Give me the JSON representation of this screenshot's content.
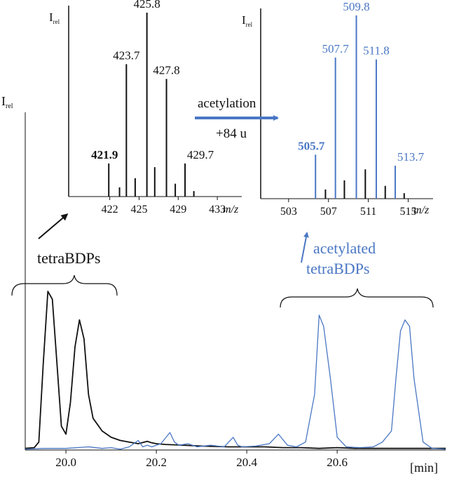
{
  "colors": {
    "black": "#111111",
    "blue": "#4a77c4"
  },
  "chart_data": [
    {
      "type": "line",
      "id": "chromatogram",
      "ylabel_main": "I",
      "ylabel_sub": "rel",
      "x_unit": "[min]",
      "xlim": [
        19.91,
        20.84
      ],
      "ylim": [
        0,
        1.0
      ],
      "x_ticks": [
        "20.0",
        "20.2",
        "20.4",
        "20.6"
      ],
      "x_tick_values": [
        20.0,
        20.2,
        20.4,
        20.6
      ],
      "series": [
        {
          "color": "#111111",
          "x": [
            19.91,
            19.93,
            19.94,
            19.95,
            19.96,
            19.97,
            19.98,
            19.99,
            20.0,
            20.01,
            20.02,
            20.03,
            20.04,
            20.05,
            20.06,
            20.08,
            20.1,
            20.12,
            20.14,
            20.16,
            20.18,
            20.19,
            20.2,
            20.22,
            20.26,
            20.3,
            20.36,
            20.4,
            20.44,
            20.48,
            20.52,
            20.56,
            20.6,
            20.64,
            20.68,
            20.72,
            20.76,
            20.8,
            20.84
          ],
          "y": [
            0.01,
            0.015,
            0.05,
            0.55,
            1.0,
            0.95,
            0.55,
            0.15,
            0.1,
            0.3,
            0.65,
            0.82,
            0.7,
            0.35,
            0.2,
            0.12,
            0.08,
            0.06,
            0.05,
            0.04,
            0.055,
            0.045,
            0.04,
            0.035,
            0.03,
            0.025,
            0.02,
            0.02,
            0.02,
            0.015,
            0.015,
            0.01,
            0.015,
            0.01,
            0.01,
            0.01,
            0.01,
            0.01,
            0.01
          ]
        },
        {
          "color": "#4a77c4",
          "x": [
            19.91,
            19.95,
            20.0,
            20.05,
            20.08,
            20.1,
            20.12,
            20.14,
            20.16,
            20.17,
            20.18,
            20.19,
            20.21,
            20.23,
            20.24,
            20.25,
            20.27,
            20.29,
            20.32,
            20.35,
            20.37,
            20.38,
            20.39,
            20.42,
            20.45,
            20.47,
            20.49,
            20.51,
            20.53,
            20.55,
            20.56,
            20.57,
            20.585,
            20.6,
            20.62,
            20.65,
            20.68,
            20.7,
            20.72,
            20.73,
            20.74,
            20.75,
            20.76,
            20.77,
            20.79,
            20.81,
            20.84
          ],
          "y": [
            0.005,
            0.01,
            0.01,
            0.02,
            0.01,
            0.015,
            0.005,
            0.02,
            0.06,
            0.02,
            0.03,
            0.02,
            0.04,
            0.11,
            0.05,
            0.03,
            0.04,
            0.02,
            0.03,
            0.02,
            0.08,
            0.03,
            0.02,
            0.025,
            0.04,
            0.1,
            0.03,
            0.02,
            0.05,
            0.35,
            0.85,
            0.78,
            0.45,
            0.08,
            0.02,
            0.015,
            0.02,
            0.05,
            0.12,
            0.45,
            0.75,
            0.82,
            0.78,
            0.45,
            0.05,
            0.01,
            0.005
          ]
        }
      ],
      "annotations": [
        {
          "text": "tetraBDPs",
          "color": "#111111"
        },
        {
          "text": "acetylated",
          "color": "#4a77c4"
        },
        {
          "text": "tetraBDPs",
          "color": "#4a77c4"
        }
      ]
    },
    {
      "type": "bar",
      "id": "ms-left",
      "ylabel_main": "I",
      "ylabel_sub": "rel",
      "x_unit": "m/z",
      "xlim": [
        417.8,
        435.5
      ],
      "ylim": [
        0,
        1.0
      ],
      "x_ticks": [
        "422",
        "425",
        "429",
        "433"
      ],
      "x_tick_values": [
        422,
        425,
        429,
        433
      ],
      "color": "#111111",
      "x": [
        421.9,
        423.0,
        423.7,
        424.6,
        425.8,
        426.6,
        427.8,
        428.7,
        429.7,
        430.6
      ],
      "values": [
        0.18,
        0.05,
        0.72,
        0.1,
        1.0,
        0.16,
        0.64,
        0.07,
        0.18,
        0.03
      ],
      "labels": [
        {
          "x": 421.9,
          "text": "421.9",
          "bold": true
        },
        {
          "x": 423.7,
          "text": "423.7",
          "bold": false
        },
        {
          "x": 425.8,
          "text": "425.8",
          "bold": false
        },
        {
          "x": 427.8,
          "text": "427.8",
          "bold": false
        },
        {
          "x": 429.7,
          "text": "429.7",
          "bold": false
        }
      ]
    },
    {
      "type": "bar",
      "id": "ms-right",
      "ylabel_main": "I",
      "ylabel_sub": "rel",
      "x_unit": "m/z",
      "xlim": [
        500.2,
        517.5
      ],
      "ylim": [
        0,
        1.0
      ],
      "x_ticks": [
        "503",
        "507",
        "511",
        "515"
      ],
      "x_tick_values": [
        503,
        507,
        511,
        515
      ],
      "color": "#4a77c4",
      "x": [
        505.7,
        506.7,
        507.7,
        508.6,
        509.8,
        510.7,
        511.8,
        512.7,
        513.7,
        514.6
      ],
      "values": [
        0.24,
        0.05,
        0.77,
        0.1,
        1.0,
        0.16,
        0.76,
        0.07,
        0.18,
        0.03
      ],
      "bar_colors": [
        "#4a77c4",
        "#111111",
        "#4a77c4",
        "#111111",
        "#4a77c4",
        "#111111",
        "#4a77c4",
        "#111111",
        "#4a77c4",
        "#111111"
      ],
      "labels": [
        {
          "x": 505.7,
          "text": "505.7",
          "bold": true
        },
        {
          "x": 507.7,
          "text": "507.7",
          "bold": false
        },
        {
          "x": 509.8,
          "text": "509.8",
          "bold": false
        },
        {
          "x": 511.8,
          "text": "511.8",
          "bold": false
        },
        {
          "x": 513.7,
          "text": "513.7",
          "bold": false
        }
      ]
    }
  ],
  "arrow_label": {
    "line1": "acetylation",
    "line2": "+84 u"
  }
}
